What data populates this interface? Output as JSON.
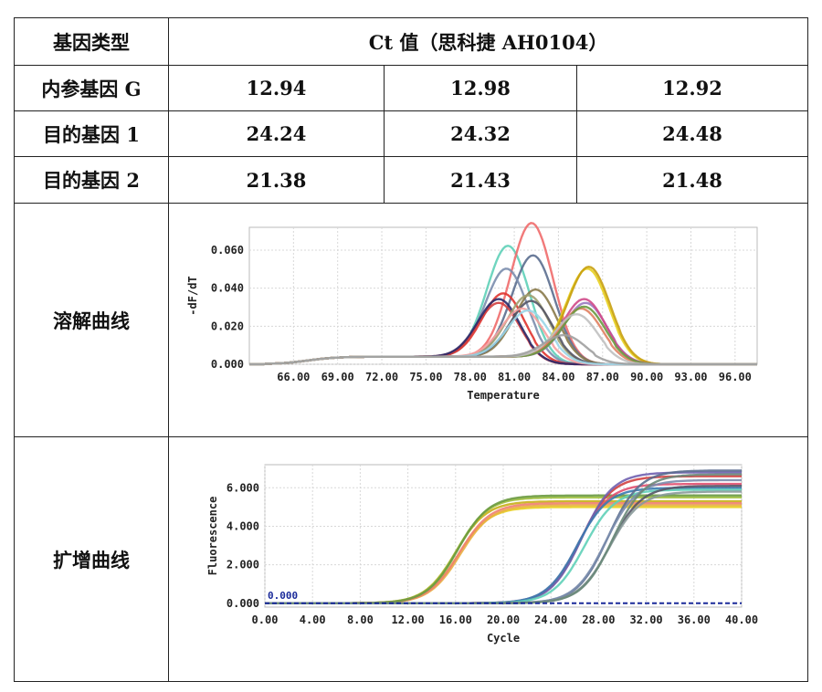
{
  "table": {
    "header": {
      "gene_type": "基因类型",
      "ct_value": "Ct 值（思科捷 AH0104）"
    },
    "rows": [
      {
        "label": "内参基因 G",
        "values": [
          "12.94",
          "12.98",
          "12.92"
        ]
      },
      {
        "label": "目的基因 1",
        "values": [
          "24.24",
          "24.32",
          "24.48"
        ]
      },
      {
        "label": "目的基因 2",
        "values": [
          "21.38",
          "21.43",
          "21.48"
        ]
      }
    ],
    "melt_label": "溶解曲线",
    "amp_label": "扩增曲线"
  },
  "chart_data": [
    {
      "type": "line",
      "xlabel": "Temperature",
      "ylabel": "-dF/dT",
      "xlim": [
        63,
        97.5
      ],
      "ylim": [
        0,
        0.072
      ],
      "x_ticks": [
        "66.00",
        "69.00",
        "72.00",
        "75.00",
        "78.00",
        "81.00",
        "84.00",
        "87.00",
        "90.00",
        "93.00",
        "96.00"
      ],
      "y_ticks": [
        "0.000",
        "0.020",
        "0.040",
        "0.060"
      ],
      "grid": true,
      "series": [
        {
          "color": "#5fd0b8",
          "peak_x": 80.6,
          "peak_y": 0.059
        },
        {
          "color": "#ef6b6b",
          "peak_x": 82.2,
          "peak_y": 0.071
        },
        {
          "color": "#5b6e8f",
          "peak_x": 82.3,
          "peak_y": 0.054
        },
        {
          "color": "#7b8dad",
          "peak_x": 80.5,
          "peak_y": 0.047
        },
        {
          "color": "#e0342f",
          "peak_x": 80.3,
          "peak_y": 0.034
        },
        {
          "color": "#d04040",
          "peak_x": 80.0,
          "peak_y": 0.029
        },
        {
          "color": "#2a2a6a",
          "peak_x": 80.0,
          "peak_y": 0.031
        },
        {
          "color": "#8a7a4a",
          "peak_x": 82.5,
          "peak_y": 0.036
        },
        {
          "color": "#a0a070",
          "peak_x": 82.0,
          "peak_y": 0.033
        },
        {
          "color": "#555566",
          "peak_x": 82.2,
          "peak_y": 0.03
        },
        {
          "color": "#f5a0a0",
          "peak_x": 81.6,
          "peak_y": 0.026
        },
        {
          "color": "#9ad6e8",
          "peak_x": 82.0,
          "peak_y": 0.025
        },
        {
          "color": "#e8d020",
          "peak_x": 86.0,
          "peak_y": 0.047
        },
        {
          "color": "#c8a010",
          "peak_x": 86.1,
          "peak_y": 0.048
        },
        {
          "color": "#9a7ac0",
          "peak_x": 85.9,
          "peak_y": 0.029
        },
        {
          "color": "#d04a8a",
          "peak_x": 85.8,
          "peak_y": 0.031
        },
        {
          "color": "#e08060",
          "peak_x": 85.6,
          "peak_y": 0.026
        },
        {
          "color": "#6a9a40",
          "peak_x": 85.8,
          "peak_y": 0.027
        },
        {
          "color": "#c0c0c0",
          "peak_x": 85.3,
          "peak_y": 0.023
        },
        {
          "color": "#a0a0a0",
          "peak_x": 84.5,
          "peak_y": 0.012
        }
      ]
    },
    {
      "type": "line",
      "xlabel": "Cycle",
      "ylabel": "Fluorescence",
      "xlim": [
        0,
        40
      ],
      "ylim": [
        -0.2,
        7.2
      ],
      "x_ticks": [
        "0.00",
        "4.00",
        "8.00",
        "12.00",
        "16.00",
        "20.00",
        "24.00",
        "28.00",
        "32.00",
        "36.00",
        "40.00"
      ],
      "y_ticks": [
        "0.000",
        "2.000",
        "4.000",
        "6.000"
      ],
      "threshold": 0.0,
      "threshold_label": "0.000",
      "grid": true,
      "series": [
        {
          "color": "#e8d020",
          "midpoint": 16.2,
          "plateau": 5.0
        },
        {
          "color": "#c8b018",
          "midpoint": 16.0,
          "plateau": 5.3
        },
        {
          "color": "#e8b040",
          "midpoint": 16.4,
          "plateau": 5.1
        },
        {
          "color": "#a0c040",
          "midpoint": 16.1,
          "plateau": 5.5
        },
        {
          "color": "#f08070",
          "midpoint": 16.3,
          "plateau": 5.2
        },
        {
          "color": "#6a9a40",
          "midpoint": 16.2,
          "plateau": 5.6
        },
        {
          "color": "#d04040",
          "midpoint": 26.5,
          "plateau": 6.6
        },
        {
          "color": "#e05070",
          "midpoint": 26.3,
          "plateau": 6.2
        },
        {
          "color": "#7060b0",
          "midpoint": 26.6,
          "plateau": 6.8
        },
        {
          "color": "#3a7ab0",
          "midpoint": 26.2,
          "plateau": 6.0
        },
        {
          "color": "#5fd0b8",
          "midpoint": 26.8,
          "plateau": 5.9
        },
        {
          "color": "#5b6e8f",
          "midpoint": 28.8,
          "plateau": 6.9
        },
        {
          "color": "#7b8dad",
          "midpoint": 28.6,
          "plateau": 6.4
        },
        {
          "color": "#555566",
          "midpoint": 29.0,
          "plateau": 6.1
        },
        {
          "color": "#8a9a9a",
          "midpoint": 28.9,
          "plateau": 5.8
        },
        {
          "color": "#6a8a7a",
          "midpoint": 29.2,
          "plateau": 6.7
        }
      ]
    }
  ]
}
